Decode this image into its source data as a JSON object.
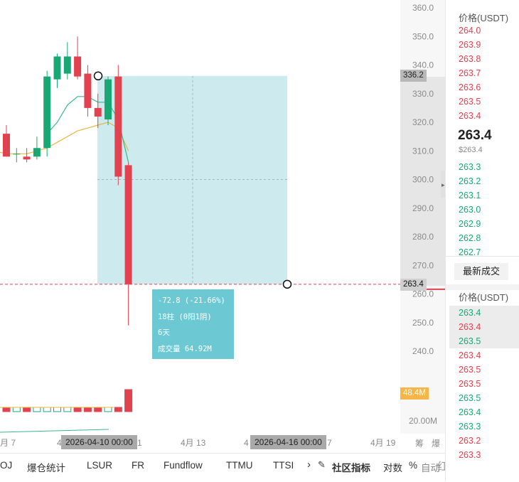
{
  "price_axis": {
    "ticks": [
      "360.0",
      "350.0",
      "340.0",
      "330.0",
      "320.0",
      "310.0",
      "300.0",
      "290.0",
      "280.0",
      "270.0",
      "260.0",
      "250.0",
      "240.0"
    ],
    "start_label": "336.2",
    "current_label": "263.4",
    "volume_label": "48.4M",
    "volume_axis_tick": "20.00M"
  },
  "measure": {
    "line1": "-72.8 (-21.66%)",
    "line2": "18柱 (0阳1阴)",
    "line3": "6天",
    "line4": "成交量 64.92M"
  },
  "date_axis": {
    "left_fragment": "月 7",
    "fragment_4": "4",
    "fragment_1": "1",
    "apr13": "4月 13",
    "fragment_4b": "4",
    "fragment_7": "7",
    "apr19": "4月 19",
    "start_date": "2026-04-10 00:00",
    "end_date": "2026-04-16 00:00",
    "right_symbol1": "筹",
    "right_symbol2": "爆"
  },
  "toolbar": {
    "items": [
      "OJ",
      "爆仓统计",
      "LSUR",
      "FR",
      "Fundflow",
      "TTMU",
      "TTSI"
    ],
    "arrow": "›",
    "community_indicator": "社区指标",
    "log": "对数",
    "percent": "%",
    "auto": "自动",
    "watermark": "红杉btc"
  },
  "orderbook": {
    "header_price": "价格(USDT)",
    "asks": [
      "264.0",
      "263.9",
      "263.8",
      "263.7",
      "263.6",
      "263.5",
      "263.4"
    ],
    "last_price": "263.4",
    "last_price_sub": "$263.4",
    "bids": [
      "263.3",
      "263.2",
      "263.1",
      "263.0",
      "262.9",
      "262.8",
      "262.7"
    ],
    "trades_tab": "最新成交",
    "trades_header": "价格(USDT)",
    "trades": [
      {
        "p": "263.4",
        "side": "buy"
      },
      {
        "p": "263.4",
        "side": "sell"
      },
      {
        "p": "263.5",
        "side": "buy"
      },
      {
        "p": "263.4",
        "side": "sell"
      },
      {
        "p": "263.5",
        "side": "sell"
      },
      {
        "p": "263.5",
        "side": "sell"
      },
      {
        "p": "263.5",
        "side": "buy"
      },
      {
        "p": "263.4",
        "side": "buy"
      },
      {
        "p": "263.3",
        "side": "buy"
      },
      {
        "p": "263.2",
        "side": "sell"
      },
      {
        "p": "263.3",
        "side": "sell"
      }
    ]
  },
  "colors": {
    "up": "#19a874",
    "down": "#e0424f",
    "measure_fill": "#cdebef",
    "ma_fast": "#37b98a",
    "ma_slow": "#e6b83b"
  },
  "chart_data": {
    "type": "candlestick",
    "ylim": [
      240,
      362
    ],
    "candles": [
      {
        "o": 316,
        "h": 319,
        "l": 308,
        "c": 308
      },
      {
        "o": 309,
        "h": 311,
        "l": 306,
        "c": 309
      },
      {
        "o": 308,
        "h": 311,
        "l": 306,
        "c": 307
      },
      {
        "o": 308,
        "h": 315,
        "l": 307,
        "c": 311
      },
      {
        "o": 311,
        "h": 338,
        "l": 308,
        "c": 336
      },
      {
        "o": 335,
        "h": 344,
        "l": 332,
        "c": 343
      },
      {
        "o": 337,
        "h": 348,
        "l": 335,
        "c": 343
      },
      {
        "o": 343,
        "h": 350,
        "l": 335,
        "c": 336
      },
      {
        "o": 337,
        "h": 340,
        "l": 322,
        "c": 325
      },
      {
        "o": 325,
        "h": 330,
        "l": 318,
        "c": 322
      },
      {
        "o": 321,
        "h": 336,
        "l": 319,
        "c": 335
      },
      {
        "o": 336,
        "h": 340,
        "l": 298,
        "c": 301
      },
      {
        "o": 305,
        "h": 306,
        "l": 249,
        "c": 263.4
      }
    ],
    "volumes": [
      1,
      1,
      1,
      1,
      1,
      1,
      1,
      1,
      1,
      1,
      1,
      1,
      48.4
    ],
    "ma_fast": [
      null,
      null,
      null,
      null,
      316,
      320,
      326,
      329,
      329,
      327,
      327,
      321,
      306
    ],
    "ma_slow": [
      309,
      309,
      309,
      310,
      311,
      313,
      315,
      317,
      318,
      319,
      320,
      318,
      310
    ]
  }
}
